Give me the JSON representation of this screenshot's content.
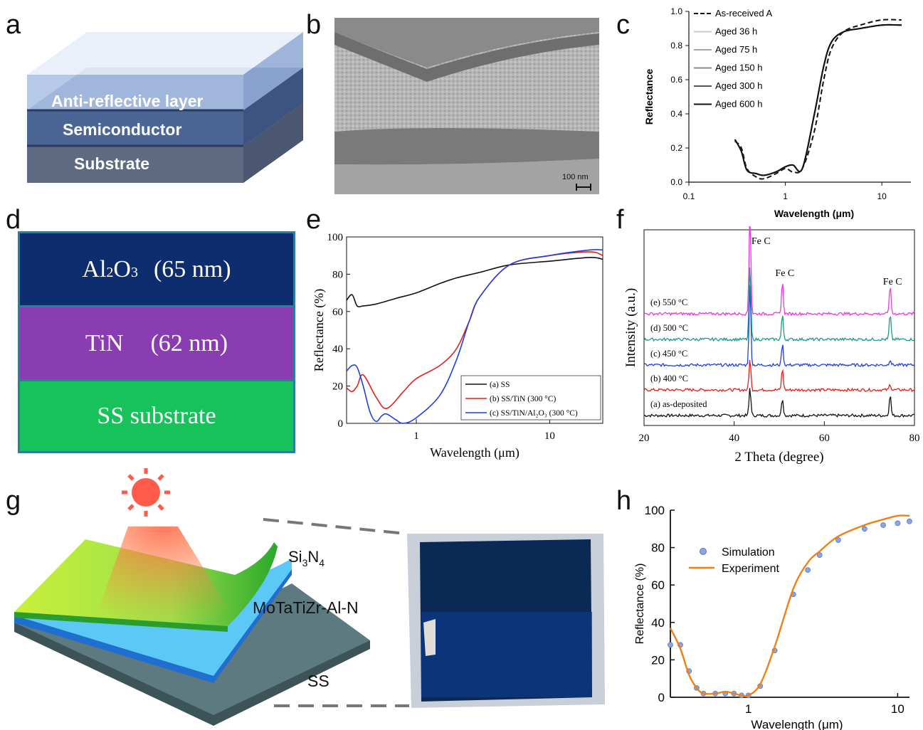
{
  "labels": {
    "a": "a",
    "b": "b",
    "c": "c",
    "d": "d",
    "e": "e",
    "f": "f",
    "g": "g",
    "h": "h"
  },
  "panel_a": {
    "layers": [
      "Anti-reflective layer",
      "Semiconductor",
      "Substrate"
    ],
    "colors": {
      "top": "#a9bfe3",
      "mid": "#4b6694",
      "sub": "#5d6a82"
    }
  },
  "panel_b": {
    "scale_bar": "100 nm"
  },
  "panel_d": {
    "layers": [
      {
        "name": "Al2O3",
        "sub_prefix": "Al",
        "sub_mid": "2",
        "mid": "O",
        "sub_end": "3",
        "thickness": "(65 nm)",
        "color": "#0d2d6e"
      },
      {
        "name": "TiN",
        "thickness": "(62 nm)",
        "color": "#8a3db0"
      },
      {
        "name": "SS substrate",
        "thickness": "",
        "color": "#17c25a"
      }
    ],
    "border": "#2a7f9e"
  },
  "panel_g": {
    "labels": [
      "Si3N4",
      "MoTaTiZr-Al-N",
      "SS"
    ],
    "si": "Si",
    "n": "N",
    "sub3": "3",
    "sub4": "4"
  },
  "chart_data": [
    {
      "panel": "c",
      "type": "line",
      "xscale": "log",
      "xlabel": "Wavelength (μm)",
      "ylabel": "Reflectance",
      "xlim": [
        0.1,
        20
      ],
      "ylim": [
        0,
        1.0
      ],
      "xticks": [
        "0.1",
        "1",
        "10"
      ],
      "yticks": [
        "0.0",
        "0.2",
        "0.4",
        "0.6",
        "0.8",
        "1.0"
      ],
      "legend_position": "top-left",
      "series": [
        {
          "name": "As-received A",
          "style": "dashed",
          "color": "#111111",
          "x": [
            0.3,
            0.35,
            0.4,
            0.5,
            0.6,
            0.8,
            1.0,
            1.2,
            1.5,
            2.0,
            2.5,
            3.0,
            4.0,
            6.0,
            10.0,
            16.0
          ],
          "y": [
            0.24,
            0.2,
            0.08,
            0.03,
            0.02,
            0.05,
            0.08,
            0.06,
            0.08,
            0.3,
            0.6,
            0.78,
            0.88,
            0.92,
            0.95,
            0.95
          ]
        },
        {
          "name": "Aged 36 h",
          "style": "solid",
          "color": "#c8c8c8",
          "x": [
            0.3,
            0.35,
            0.4,
            0.5,
            0.6,
            0.8,
            1.0,
            1.2,
            1.5,
            2.0,
            2.5,
            3.0,
            4.0,
            6.0,
            10.0,
            16.0
          ],
          "y": [
            0.25,
            0.18,
            0.07,
            0.05,
            0.04,
            0.06,
            0.09,
            0.1,
            0.08,
            0.4,
            0.68,
            0.82,
            0.88,
            0.9,
            0.92,
            0.92
          ]
        },
        {
          "name": "Aged 75 h",
          "style": "solid",
          "color": "#a8a8a8",
          "x": [
            0.3,
            0.35,
            0.4,
            0.5,
            0.6,
            0.8,
            1.0,
            1.2,
            1.5,
            2.0,
            2.5,
            3.0,
            4.0,
            6.0,
            10.0,
            16.0
          ],
          "y": [
            0.25,
            0.18,
            0.07,
            0.05,
            0.04,
            0.06,
            0.09,
            0.1,
            0.08,
            0.4,
            0.68,
            0.82,
            0.88,
            0.9,
            0.92,
            0.92
          ]
        },
        {
          "name": "Aged 150 h",
          "style": "solid",
          "color": "#888888",
          "x": [
            0.3,
            0.35,
            0.4,
            0.5,
            0.6,
            0.8,
            1.0,
            1.2,
            1.5,
            2.0,
            2.5,
            3.0,
            4.0,
            6.0,
            10.0,
            16.0
          ],
          "y": [
            0.25,
            0.18,
            0.07,
            0.05,
            0.04,
            0.06,
            0.09,
            0.1,
            0.08,
            0.4,
            0.68,
            0.82,
            0.88,
            0.9,
            0.92,
            0.92
          ]
        },
        {
          "name": "Aged 300 h",
          "style": "solid",
          "color": "#555555",
          "x": [
            0.3,
            0.35,
            0.4,
            0.5,
            0.6,
            0.8,
            1.0,
            1.2,
            1.5,
            2.0,
            2.5,
            3.0,
            4.0,
            6.0,
            10.0,
            16.0
          ],
          "y": [
            0.25,
            0.18,
            0.07,
            0.05,
            0.04,
            0.06,
            0.09,
            0.1,
            0.08,
            0.4,
            0.68,
            0.82,
            0.88,
            0.9,
            0.92,
            0.92
          ]
        },
        {
          "name": "Aged 600 h",
          "style": "solid",
          "color": "#111111",
          "x": [
            0.3,
            0.35,
            0.4,
            0.5,
            0.6,
            0.8,
            1.0,
            1.2,
            1.5,
            2.0,
            2.5,
            3.0,
            4.0,
            6.0,
            10.0,
            16.0
          ],
          "y": [
            0.25,
            0.18,
            0.07,
            0.05,
            0.04,
            0.06,
            0.09,
            0.1,
            0.08,
            0.4,
            0.68,
            0.82,
            0.88,
            0.9,
            0.92,
            0.92
          ]
        }
      ]
    },
    {
      "panel": "e",
      "type": "line",
      "xscale": "log",
      "xlabel": "Wavelength (μm)",
      "ylabel": "Reflectance (%)",
      "xlim": [
        0.3,
        25
      ],
      "ylim": [
        0,
        100
      ],
      "xticks": [
        "1",
        "10"
      ],
      "yticks": [
        "0",
        "20",
        "40",
        "60",
        "80",
        "100"
      ],
      "legend_position": "bottom-right",
      "series": [
        {
          "name": "(a) SS",
          "color": "#111111",
          "x": [
            0.3,
            0.33,
            0.36,
            0.4,
            0.5,
            0.7,
            1.0,
            1.5,
            2.0,
            3.0,
            5.0,
            10.0,
            20.0,
            25.0
          ],
          "y": [
            66,
            69,
            63,
            63,
            64,
            67,
            70,
            75,
            78,
            81,
            85,
            87,
            89,
            88
          ]
        },
        {
          "name": "(b) SS/TiN (300 °C)",
          "color": "#e0201c",
          "x": [
            0.3,
            0.33,
            0.36,
            0.4,
            0.5,
            0.6,
            0.8,
            1.0,
            1.5,
            2.0,
            2.5,
            3.0,
            5.0,
            10.0,
            20.0,
            25.0
          ],
          "y": [
            19,
            17,
            20,
            26,
            14,
            8,
            17,
            24,
            31,
            40,
            55,
            68,
            85,
            90,
            92,
            90
          ]
        },
        {
          "name": "(c) SS/TiN/Al₂O₃ (300 °C)",
          "color": "#1f3fe0",
          "x": [
            0.3,
            0.33,
            0.36,
            0.4,
            0.45,
            0.5,
            0.55,
            0.6,
            0.7,
            0.8,
            1.0,
            1.5,
            2.0,
            2.5,
            3.0,
            5.0,
            10.0,
            20.0,
            25.0
          ],
          "y": [
            28,
            31,
            30,
            20,
            6,
            1,
            4,
            5,
            2,
            0,
            3,
            15,
            34,
            55,
            68,
            85,
            90,
            93,
            93
          ]
        }
      ]
    },
    {
      "panel": "f",
      "type": "line",
      "xlabel": "2 Theta (degree)",
      "ylabel": "Intensity (a.u.)",
      "xlim": [
        20,
        80
      ],
      "xticks": [
        "20",
        "40",
        "60",
        "80"
      ],
      "peaks": [
        43.5,
        50.7,
        74.6
      ],
      "peak_labels": [
        "Fe C",
        "Fe C",
        "Fe C"
      ],
      "series": [
        {
          "name": "(a) as-deposited",
          "color": "#111111",
          "offset": 0
        },
        {
          "name": "(b) 400 °C",
          "color": "#e0201c",
          "offset": 1
        },
        {
          "name": "(c) 450 °C",
          "color": "#1f3fe0",
          "offset": 2
        },
        {
          "name": "(d) 500 °C",
          "color": "#1e9a8a",
          "offset": 3
        },
        {
          "name": "(e) 550 °C",
          "color": "#e838e0",
          "offset": 4
        }
      ]
    },
    {
      "panel": "h",
      "type": "line",
      "xscale": "log",
      "xlabel": "Wavelength (μm)",
      "ylabel": "Reflectance (%)",
      "xlim": [
        0.3,
        12
      ],
      "ylim": [
        0,
        100
      ],
      "xticks": [
        "1",
        "10"
      ],
      "yticks": [
        "0",
        "20",
        "40",
        "60",
        "80",
        "100"
      ],
      "legend_position": "top-left",
      "series": [
        {
          "name": "Simulation",
          "style": "markers",
          "color": "#8aa6dc",
          "x": [
            0.3,
            0.35,
            0.4,
            0.45,
            0.5,
            0.6,
            0.7,
            0.8,
            0.9,
            1.0,
            1.2,
            1.5,
            2.0,
            2.5,
            3.0,
            4.0,
            6.0,
            8.0,
            10.0,
            12.0
          ],
          "y": [
            28,
            28,
            14,
            5,
            2,
            2,
            2,
            2,
            1,
            1,
            6,
            25,
            55,
            68,
            76,
            84,
            90,
            92,
            93,
            94
          ]
        },
        {
          "name": "Experiment",
          "style": "solid",
          "color": "#f07f14",
          "x": [
            0.3,
            0.35,
            0.4,
            0.45,
            0.5,
            0.6,
            0.7,
            0.8,
            0.9,
            1.0,
            1.2,
            1.5,
            2.0,
            2.5,
            3.0,
            4.0,
            6.0,
            8.0,
            10.0,
            12.0
          ],
          "y": [
            37,
            26,
            12,
            5,
            2,
            2,
            3,
            2,
            1,
            1,
            7,
            27,
            58,
            72,
            78,
            86,
            92,
            95,
            97,
            97
          ]
        }
      ]
    }
  ]
}
